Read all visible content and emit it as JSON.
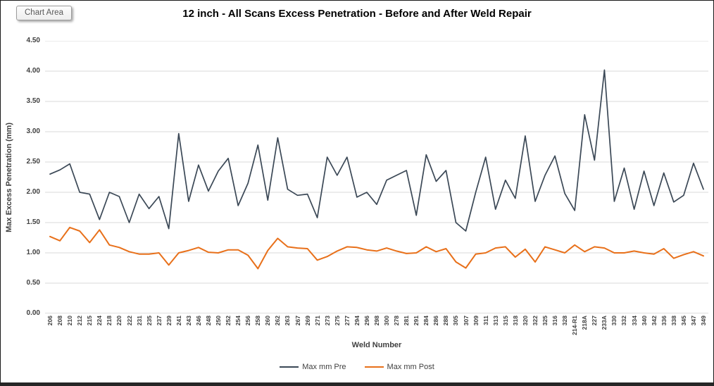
{
  "window": {
    "chart_area_label": "Chart Area"
  },
  "chart": {
    "tick_label_color": "#404040",
    "gridline_color": "#d9d9d9",
    "axis_line_color": "#bfbfbf"
  },
  "chart_data": {
    "type": "line",
    "title": "12 inch - All Scans Excess Penetration - Before and After Weld Repair",
    "xlabel": "Weld Number",
    "ylabel": "Max Excess Penetration (mm)",
    "ylim": [
      0,
      4.5
    ],
    "ytick_step": 0.5,
    "ytick_format": "0.00",
    "grid": true,
    "legend_position": "bottom",
    "categories": [
      "206",
      "208",
      "210",
      "212",
      "215",
      "224",
      "218",
      "220",
      "222",
      "231",
      "235",
      "237",
      "239",
      "241",
      "243",
      "246",
      "248",
      "250",
      "252",
      "254",
      "256",
      "258",
      "260",
      "262",
      "263",
      "267",
      "269",
      "271",
      "273",
      "275",
      "277",
      "294",
      "296",
      "298",
      "300",
      "278",
      "281",
      "291",
      "284",
      "286",
      "288",
      "305",
      "307",
      "309",
      "311",
      "313",
      "315",
      "318",
      "320",
      "322",
      "325",
      "316",
      "328",
      "214-R1",
      "218A",
      "227",
      "233A",
      "330",
      "332",
      "334",
      "340",
      "342",
      "336",
      "338",
      "345",
      "347",
      "349"
    ],
    "series": [
      {
        "name": "Max mm Pre",
        "color": "#3b4856",
        "values": [
          2.3,
          2.37,
          2.47,
          2.0,
          1.97,
          1.55,
          2.0,
          1.93,
          1.5,
          1.97,
          1.73,
          1.93,
          1.4,
          2.97,
          1.85,
          2.45,
          2.02,
          2.35,
          2.56,
          1.78,
          2.15,
          2.78,
          1.87,
          2.9,
          2.05,
          1.95,
          1.97,
          1.58,
          2.58,
          2.28,
          2.58,
          1.92,
          2.0,
          1.8,
          2.2,
          2.28,
          2.36,
          1.62,
          2.62,
          2.18,
          2.36,
          1.5,
          1.36,
          2.0,
          2.58,
          1.72,
          2.2,
          1.9,
          2.93,
          1.85,
          2.28,
          2.6,
          1.98,
          1.7,
          3.28,
          2.53,
          4.02,
          1.85,
          2.4,
          1.72,
          2.35,
          1.78,
          2.32,
          1.84,
          1.95,
          2.48,
          2.05
        ]
      },
      {
        "name": "Max mm Post",
        "color": "#e8701a",
        "values": [
          1.27,
          1.2,
          1.42,
          1.36,
          1.17,
          1.38,
          1.13,
          1.09,
          1.02,
          0.98,
          0.98,
          1.0,
          0.8,
          1.0,
          1.04,
          1.09,
          1.01,
          1.0,
          1.05,
          1.05,
          0.96,
          0.74,
          1.04,
          1.24,
          1.1,
          1.08,
          1.07,
          0.88,
          0.94,
          1.03,
          1.1,
          1.09,
          1.05,
          1.03,
          1.08,
          1.03,
          0.99,
          1.0,
          1.1,
          1.02,
          1.07,
          0.85,
          0.75,
          0.98,
          1.0,
          1.08,
          1.1,
          0.93,
          1.06,
          0.85,
          1.1,
          1.05,
          1.0,
          1.13,
          1.02,
          1.1,
          1.08,
          1.0,
          1.0,
          1.03,
          1.0,
          0.98,
          1.07,
          0.91,
          0.97,
          1.02,
          0.95
        ]
      }
    ]
  }
}
